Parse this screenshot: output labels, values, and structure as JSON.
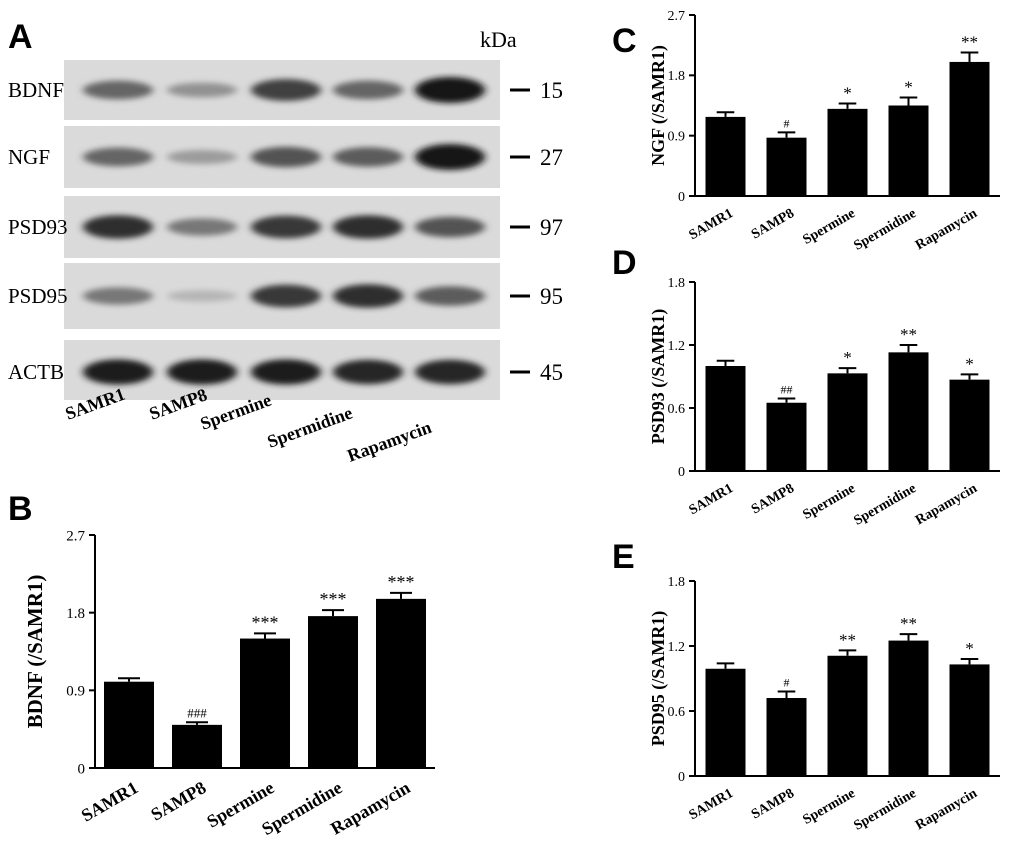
{
  "panel_a": {
    "letter": "A",
    "kda_label": "kDa",
    "lanes": [
      "SAMR1",
      "SAMP8",
      "Spermine",
      "Spermidine",
      "Rapamycin"
    ],
    "blots": [
      {
        "protein": "BDNF",
        "marker": "15",
        "intensity": [
          0.55,
          0.3,
          0.75,
          0.55,
          1.0
        ]
      },
      {
        "protein": "NGF",
        "marker": "27",
        "intensity": [
          0.55,
          0.25,
          0.65,
          0.6,
          1.0
        ]
      },
      {
        "protein": "PSD93",
        "marker": "97",
        "intensity": [
          0.85,
          0.45,
          0.8,
          0.85,
          0.65
        ]
      },
      {
        "protein": "PSD95",
        "marker": "95",
        "intensity": [
          0.45,
          0.1,
          0.8,
          0.85,
          0.6
        ]
      },
      {
        "protein": "ACTB",
        "marker": "45",
        "intensity": [
          0.95,
          0.95,
          0.95,
          0.9,
          0.9
        ]
      }
    ]
  },
  "chart_data": [
    {
      "panel": "B",
      "type": "bar",
      "categories": [
        "SAMR1",
        "SAMP8",
        "Spermine",
        "Spermidine",
        "Rapamycin"
      ],
      "values": [
        1.0,
        0.5,
        1.5,
        1.76,
        1.96
      ],
      "errors": [
        0.04,
        0.03,
        0.06,
        0.07,
        0.07
      ],
      "annotations": [
        "",
        "###",
        "***",
        "***",
        "***"
      ],
      "ylabel": "BDNF (/SAMR1)",
      "xlabel": "",
      "ylim": [
        0,
        2.7
      ],
      "yticks": [
        "0",
        "0.9",
        "1.8",
        "2.7"
      ]
    },
    {
      "panel": "C",
      "type": "bar",
      "categories": [
        "SAMR1",
        "SAMP8",
        "Spermine",
        "Spermidine",
        "Rapamycin"
      ],
      "values": [
        1.18,
        0.87,
        1.3,
        1.35,
        2.0
      ],
      "errors": [
        0.07,
        0.08,
        0.08,
        0.12,
        0.14
      ],
      "annotations": [
        "",
        "#",
        "*",
        "*",
        "**"
      ],
      "ylabel": "NGF (/SAMR1)",
      "xlabel": "",
      "ylim": [
        0,
        2.7
      ],
      "yticks": [
        "0",
        "0.9",
        "1.8",
        "2.7"
      ]
    },
    {
      "panel": "D",
      "type": "bar",
      "categories": [
        "SAMR1",
        "SAMP8",
        "Spermine",
        "Spermidine",
        "Rapamycin"
      ],
      "values": [
        1.0,
        0.65,
        0.93,
        1.13,
        0.87
      ],
      "errors": [
        0.05,
        0.04,
        0.05,
        0.07,
        0.05
      ],
      "annotations": [
        "",
        "##",
        "*",
        "**",
        "*"
      ],
      "ylabel": "PSD93 (/SAMR1)",
      "xlabel": "",
      "ylim": [
        0,
        1.8
      ],
      "yticks": [
        "0",
        "0.6",
        "1.2",
        "1.8"
      ]
    },
    {
      "panel": "E",
      "type": "bar",
      "categories": [
        "SAMR1",
        "SAMP8",
        "Spermine",
        "Spermidine",
        "Rapamycin"
      ],
      "values": [
        0.99,
        0.72,
        1.11,
        1.25,
        1.03
      ],
      "errors": [
        0.05,
        0.06,
        0.05,
        0.06,
        0.05
      ],
      "annotations": [
        "",
        "#",
        "**",
        "**",
        "*"
      ],
      "ylabel": "PSD95 (/SAMR1)",
      "xlabel": "",
      "ylim": [
        0,
        1.8
      ],
      "yticks": [
        "0",
        "0.6",
        "1.2",
        "1.8"
      ]
    }
  ]
}
